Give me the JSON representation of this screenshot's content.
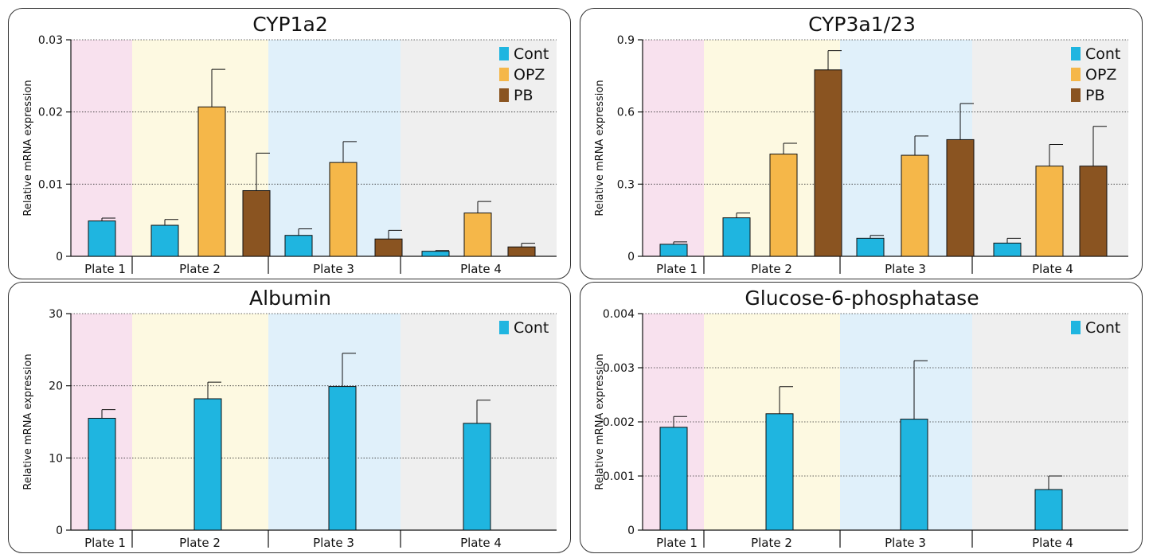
{
  "chart_data": [
    {
      "type": "bar",
      "title": "CYP1a2",
      "ylabel": "Relative mRNA expression",
      "ylim": [
        0,
        0.03
      ],
      "yticks": [
        "0",
        "0.01",
        "0.02",
        "0.03"
      ],
      "categories": [
        "Plate 1",
        "Plate 2",
        "Plate 3",
        "Plate 4"
      ],
      "legend": "top-right",
      "series": [
        {
          "name": "Cont",
          "color": "#1FB5E0",
          "values": [
            0.0049,
            0.0043,
            0.0029,
            0.0007
          ],
          "errors": [
            0.0004,
            0.0008,
            0.0009,
            0.0001
          ]
        },
        {
          "name": "OPZ",
          "color": "#F5B749",
          "values": [
            null,
            0.0207,
            0.013,
            0.006
          ],
          "errors": [
            null,
            0.0052,
            0.0029,
            0.0016
          ]
        },
        {
          "name": "PB",
          "color": "#8A5421",
          "values": [
            null,
            0.0091,
            0.0024,
            0.0013
          ],
          "errors": [
            null,
            0.0052,
            0.0012,
            0.0005
          ]
        }
      ]
    },
    {
      "type": "bar",
      "title": "CYP3a1/23",
      "ylabel": "Relative mRNA expression",
      "ylim": [
        0,
        0.9
      ],
      "yticks": [
        "0",
        "0.3",
        "0.6",
        "0.9"
      ],
      "categories": [
        "Plate 1",
        "Plate 2",
        "Plate 3",
        "Plate 4"
      ],
      "legend": "top-right",
      "series": [
        {
          "name": "Cont",
          "color": "#1FB5E0",
          "values": [
            0.05,
            0.16,
            0.075,
            0.055
          ],
          "errors": [
            0.01,
            0.02,
            0.012,
            0.02
          ]
        },
        {
          "name": "OPZ",
          "color": "#F5B749",
          "values": [
            null,
            0.425,
            0.42,
            0.375
          ],
          "errors": [
            null,
            0.045,
            0.08,
            0.09
          ]
        },
        {
          "name": "PB",
          "color": "#8A5421",
          "values": [
            null,
            0.775,
            0.485,
            0.375
          ],
          "errors": [
            null,
            0.08,
            0.15,
            0.165
          ]
        }
      ]
    },
    {
      "type": "bar",
      "title": "Albumin",
      "ylabel": "Relative mRNA expression",
      "ylim": [
        0,
        30
      ],
      "yticks": [
        "0",
        "10",
        "20",
        "30"
      ],
      "categories": [
        "Plate 1",
        "Plate 2",
        "Plate 3",
        "Plate 4"
      ],
      "legend": "top-right",
      "series": [
        {
          "name": "Cont",
          "color": "#1FB5E0",
          "values": [
            15.5,
            18.2,
            19.9,
            14.8
          ],
          "errors": [
            1.2,
            2.3,
            4.6,
            3.2
          ]
        }
      ]
    },
    {
      "type": "bar",
      "title": "Glucose-6-phosphatase",
      "ylabel": "Relative mRNA expression",
      "ylim": [
        0,
        0.004
      ],
      "yticks": [
        "0",
        "0.001",
        "0.002",
        "0.003",
        "0.004"
      ],
      "categories": [
        "Plate 1",
        "Plate 2",
        "Plate 3",
        "Plate 4"
      ],
      "legend": "top-right",
      "series": [
        {
          "name": "Cont",
          "color": "#1FB5E0",
          "values": [
            0.0019,
            0.00215,
            0.00205,
            0.00075
          ],
          "errors": [
            0.0002,
            0.0005,
            0.00108,
            0.00025
          ]
        }
      ]
    }
  ],
  "plate_colors": [
    "#F8E1EE",
    "#FDF9E1",
    "#E0F0FA",
    "#EFEFEF"
  ]
}
